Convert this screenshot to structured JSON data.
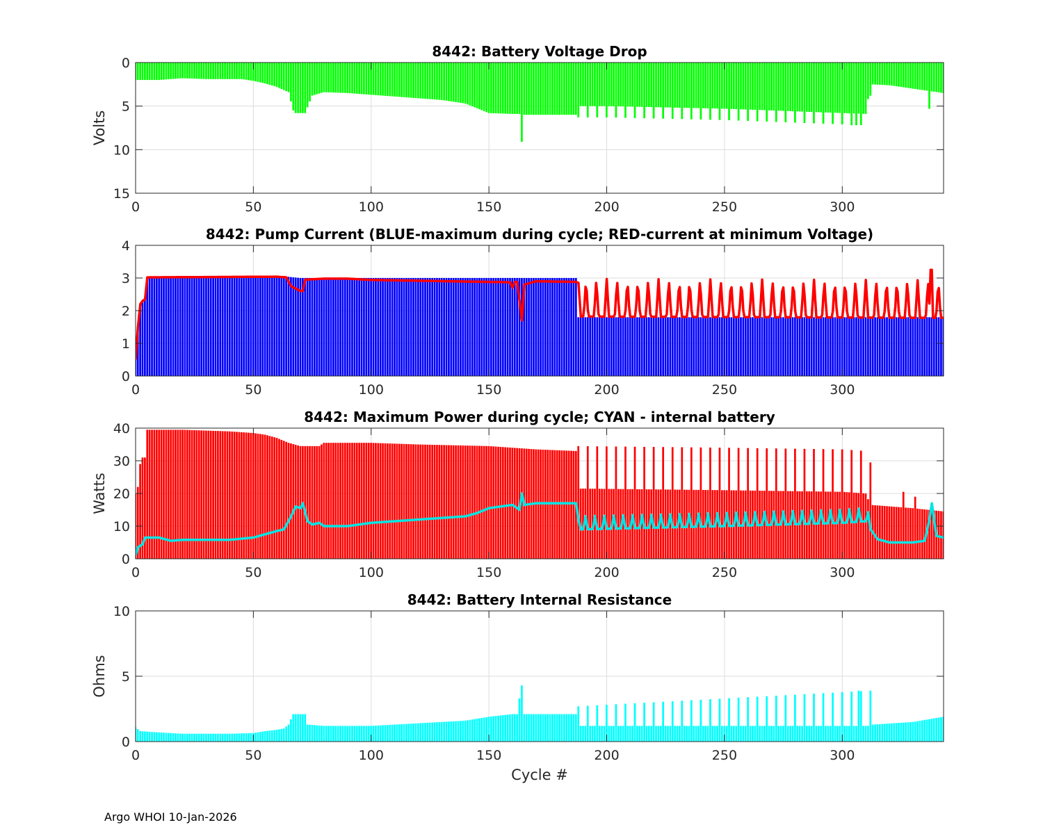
{
  "figure_footer": "Argo WHOI 10-Jan-2026",
  "chart_data": [
    {
      "type": "bar",
      "title": "8442: Battery Voltage Drop",
      "ylabel": "Volts",
      "xlabel": "",
      "xlim": [
        0,
        343
      ],
      "ylim": [
        0,
        15
      ],
      "y_reversed": true,
      "xticks": [
        0,
        50,
        100,
        150,
        200,
        250,
        300
      ],
      "yticks": [
        0,
        5,
        10,
        15
      ],
      "grid": true,
      "series": [
        {
          "kind": "bar",
          "color": "#00ff00",
          "anchors": [
            [
              1,
              2
            ],
            [
              10,
              2
            ],
            [
              20,
              1.8
            ],
            [
              30,
              1.9
            ],
            [
              45,
              1.9
            ],
            [
              50,
              2.1
            ],
            [
              55,
              2.4
            ],
            [
              60,
              2.8
            ],
            [
              65,
              3.4
            ],
            [
              67,
              5.5
            ],
            [
              68,
              5.8
            ],
            [
              70,
              5.8
            ],
            [
              72,
              5.8
            ],
            [
              75,
              3.8
            ],
            [
              80,
              3.4
            ],
            [
              90,
              3.5
            ],
            [
              100,
              3.7
            ],
            [
              120,
              4.1
            ],
            [
              130,
              4.3
            ],
            [
              140,
              4.7
            ],
            [
              150,
              5.8
            ],
            [
              160,
              5.9
            ],
            [
              163,
              5.9
            ],
            [
              164,
              9.1
            ],
            [
              165,
              6
            ],
            [
              175,
              6
            ],
            [
              187,
              6
            ],
            [
              188,
              5
            ],
            [
              200,
              5
            ],
            [
              250,
              5.3
            ],
            [
              300,
              5.8
            ],
            [
              310,
              5.9
            ],
            [
              312,
              2.5
            ],
            [
              320,
              2.6
            ],
            [
              330,
              3
            ],
            [
              343,
              3.5
            ]
          ],
          "periodic": {
            "from": 188,
            "to": 312,
            "period": 4,
            "peak_add": 1.3
          },
          "spikes": [
            [
              164,
              9.1
            ],
            [
              304,
              7.2
            ],
            [
              306,
              7.2
            ],
            [
              337,
              5.3
            ]
          ]
        }
      ]
    },
    {
      "type": "bar",
      "title": "8442: Pump Current (BLUE-maximum during cycle; RED-current at minimum Voltage)",
      "ylabel": "",
      "xlabel": "",
      "xlim": [
        0,
        343
      ],
      "ylim": [
        0,
        4
      ],
      "xticks": [
        0,
        50,
        100,
        150,
        200,
        250,
        300
      ],
      "yticks": [
        0,
        1,
        2,
        3,
        4
      ],
      "grid": true,
      "series": [
        {
          "kind": "bar",
          "color": "#0000ff",
          "anchors": [
            [
              0,
              0.5
            ],
            [
              1,
              1.5
            ],
            [
              2,
              2.2
            ],
            [
              3,
              2.3
            ],
            [
              4,
              2.4
            ],
            [
              5,
              3.05
            ],
            [
              60,
              3.05
            ],
            [
              63,
              3.05
            ],
            [
              70,
              3
            ],
            [
              150,
              3
            ],
            [
              187,
              3
            ],
            [
              188,
              1.8
            ],
            [
              343,
              1.8
            ]
          ]
        },
        {
          "kind": "line",
          "color": "#ff0000",
          "anchors": [
            [
              0,
              0.5
            ],
            [
              1,
              1.5
            ],
            [
              2,
              2.2
            ],
            [
              3,
              2.3
            ],
            [
              4,
              2.35
            ],
            [
              5,
              3.02
            ],
            [
              60,
              3.04
            ],
            [
              64,
              3.02
            ],
            [
              66,
              2.75
            ],
            [
              70,
              2.6
            ],
            [
              71,
              2.6
            ],
            [
              72,
              2.95
            ],
            [
              80,
              2.98
            ],
            [
              90,
              2.98
            ],
            [
              100,
              2.94
            ],
            [
              150,
              2.88
            ],
            [
              159,
              2.87
            ],
            [
              160,
              2.7
            ],
            [
              161,
              2.88
            ],
            [
              162,
              2.88
            ],
            [
              163,
              2.3
            ],
            [
              164,
              1.7
            ],
            [
              165,
              2.8
            ],
            [
              170,
              2.9
            ],
            [
              187,
              2.88
            ],
            [
              188,
              2.85
            ],
            [
              189,
              1.82
            ],
            [
              343,
              1.78
            ]
          ],
          "periodic": {
            "from": 189,
            "to": 342,
            "period": 4.4,
            "peak_add": 1.15
          },
          "spikes": [
            [
              338,
              3.25
            ]
          ]
        }
      ]
    },
    {
      "type": "bar",
      "title": "8442: Maximum Power during cycle; CYAN - internal battery",
      "ylabel": "Watts",
      "xlabel": "",
      "xlim": [
        0,
        343
      ],
      "ylim": [
        0,
        40
      ],
      "xticks": [
        0,
        50,
        100,
        150,
        200,
        250,
        300
      ],
      "yticks": [
        0,
        10,
        20,
        30,
        40
      ],
      "grid": true,
      "series": [
        {
          "kind": "bar",
          "color": "#ff0000",
          "anchors": [
            [
              0,
              20
            ],
            [
              1,
              22
            ],
            [
              2,
              29
            ],
            [
              3,
              31
            ],
            [
              4,
              31
            ],
            [
              5,
              39.5
            ],
            [
              20,
              39.5
            ],
            [
              40,
              39
            ],
            [
              50,
              38.5
            ],
            [
              55,
              38
            ],
            [
              60,
              37
            ],
            [
              65,
              35.5
            ],
            [
              70,
              34.5
            ],
            [
              78,
              34.5
            ],
            [
              80,
              35.5
            ],
            [
              100,
              35.5
            ],
            [
              120,
              35
            ],
            [
              150,
              34.5
            ],
            [
              160,
              34
            ],
            [
              170,
              33.5
            ],
            [
              187,
              33
            ],
            [
              188,
              21.5
            ],
            [
              250,
              21
            ],
            [
              300,
              20.5
            ],
            [
              310,
              20
            ],
            [
              312,
              16.5
            ],
            [
              330,
              15.5
            ],
            [
              343,
              14.5
            ]
          ],
          "periodic": {
            "from": 188,
            "to": 312,
            "period": 4,
            "peak_add": 13
          },
          "spikes": [
            [
              326,
              20.5
            ],
            [
              331,
              19
            ]
          ]
        },
        {
          "kind": "line",
          "color": "#00e5e5",
          "anchors": [
            [
              0,
              1
            ],
            [
              1,
              3.5
            ],
            [
              2,
              4
            ],
            [
              3,
              4.5
            ],
            [
              4,
              6.5
            ],
            [
              10,
              6.5
            ],
            [
              15,
              5.5
            ],
            [
              20,
              5.8
            ],
            [
              40,
              5.8
            ],
            [
              50,
              6.5
            ],
            [
              55,
              7.5
            ],
            [
              60,
              8.5
            ],
            [
              63,
              9
            ],
            [
              66,
              13
            ],
            [
              68,
              16
            ],
            [
              70,
              15.5
            ],
            [
              71,
              17
            ],
            [
              73,
              11.5
            ],
            [
              75,
              10.5
            ],
            [
              78,
              11
            ],
            [
              80,
              10
            ],
            [
              90,
              10
            ],
            [
              100,
              11
            ],
            [
              120,
              12
            ],
            [
              140,
              13
            ],
            [
              145,
              14
            ],
            [
              150,
              15.5
            ],
            [
              160,
              16.5
            ],
            [
              163,
              15
            ],
            [
              164,
              20
            ],
            [
              165,
              16.5
            ],
            [
              170,
              17
            ],
            [
              187,
              17
            ],
            [
              188,
              12
            ],
            [
              189,
              9
            ],
            [
              250,
              10
            ],
            [
              300,
              11
            ],
            [
              310,
              11.5
            ],
            [
              312,
              9
            ],
            [
              315,
              6
            ],
            [
              320,
              5
            ],
            [
              330,
              5
            ],
            [
              335,
              5.5
            ],
            [
              337,
              12
            ],
            [
              338,
              17
            ],
            [
              340,
              7
            ],
            [
              343,
              6.5
            ]
          ],
          "periodic": {
            "from": 189,
            "to": 312,
            "period": 4,
            "peak_add": 4
          }
        }
      ]
    },
    {
      "type": "bar",
      "title": "8442: Battery Internal Resistance",
      "ylabel": "Ohms",
      "xlabel": "Cycle #",
      "xlim": [
        0,
        343
      ],
      "ylim": [
        0,
        10
      ],
      "xticks": [
        0,
        50,
        100,
        150,
        200,
        250,
        300
      ],
      "yticks": [
        0,
        5,
        10
      ],
      "grid": true,
      "series": [
        {
          "kind": "bar",
          "color": "#00ffff",
          "anchors": [
            [
              0,
              1.1
            ],
            [
              2,
              0.8
            ],
            [
              10,
              0.7
            ],
            [
              20,
              0.6
            ],
            [
              40,
              0.6
            ],
            [
              50,
              0.65
            ],
            [
              55,
              0.8
            ],
            [
              60,
              0.9
            ],
            [
              63,
              1
            ],
            [
              65,
              1.3
            ],
            [
              67,
              2.1
            ],
            [
              72,
              2.1
            ],
            [
              73,
              1.3
            ],
            [
              80,
              1.2
            ],
            [
              100,
              1.2
            ],
            [
              120,
              1.4
            ],
            [
              140,
              1.6
            ],
            [
              150,
              1.9
            ],
            [
              160,
              2.1
            ],
            [
              163,
              2.1
            ],
            [
              164,
              4.3
            ],
            [
              165,
              2.1
            ],
            [
              187,
              2.1
            ],
            [
              188,
              1.2
            ],
            [
              312,
              1.2
            ],
            [
              313,
              1.3
            ],
            [
              330,
              1.5
            ],
            [
              343,
              1.9
            ]
          ],
          "periodic": {
            "from": 188,
            "to": 312,
            "period": 4,
            "peak_start": 2.7,
            "peak_end": 3.9
          },
          "spikes": [
            [
              163,
              3.3
            ],
            [
              164,
              4.3
            ],
            [
              307,
              3.9
            ]
          ]
        }
      ]
    }
  ]
}
